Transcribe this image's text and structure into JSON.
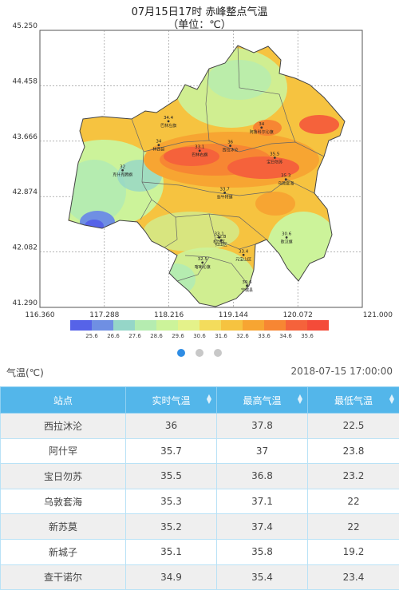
{
  "map": {
    "title": "07月15日17时   赤峰整点气温",
    "unit": "（单位：℃）",
    "lat_ticks": [
      "45.250",
      "44.458",
      "43.666",
      "42.874",
      "42.082",
      "41.290"
    ],
    "lon_ticks": [
      "116.360",
      "117.288",
      "118.216",
      "119.144",
      "120.072",
      "121.000"
    ],
    "legend_values": [
      "25.6",
      "26.6",
      "27.6",
      "28.6",
      "29.6",
      "30.6",
      "31.6",
      "32.6",
      "33.6",
      "34.6",
      "35.6"
    ],
    "legend_colors": [
      "#5663e8",
      "#6f8fe3",
      "#95d6c8",
      "#b5ecb0",
      "#ccf39a",
      "#e4f28a",
      "#f3dc5c",
      "#f6c340",
      "#f7a532",
      "#f78633",
      "#f5623b",
      "#f44b39"
    ],
    "stations": [
      {
        "name": "克什克腾旗",
        "value": "32",
        "lon": 117.55,
        "lat": 43.25
      },
      {
        "name": "林西县",
        "value": "34",
        "lon": 118.07,
        "lat": 43.61
      },
      {
        "name": "巴林左旗",
        "value": "34.4",
        "lon": 118.21,
        "lat": 43.95
      },
      {
        "name": "巴林右旗",
        "value": "33.1",
        "lon": 118.66,
        "lat": 43.53
      },
      {
        "name": "阿鲁科尔沁旗",
        "value": "34",
        "lon": 119.55,
        "lat": 43.86
      },
      {
        "name": "翁牛特旗",
        "value": "33.7",
        "lon": 119.02,
        "lat": 42.93
      },
      {
        "name": "松山区",
        "value": "33.1",
        "lon": 118.94,
        "lat": 42.29
      },
      {
        "name": "红山区",
        "value": "32.8",
        "lon": 118.97,
        "lat": 42.25
      },
      {
        "name": "元宝山区",
        "value": "33.4",
        "lon": 119.29,
        "lat": 42.04
      },
      {
        "name": "敖汉旗",
        "value": "30.6",
        "lon": 119.91,
        "lat": 42.29
      },
      {
        "name": "喀喇沁旗",
        "value": "32.5",
        "lon": 118.7,
        "lat": 41.93
      },
      {
        "name": "宁城县",
        "value": "30.6",
        "lon": 119.34,
        "lat": 41.6
      },
      {
        "name": "宝日勿苏",
        "value": "35.5",
        "lon": 119.74,
        "lat": 43.43
      },
      {
        "name": "乌敦套海",
        "value": "35.3",
        "lon": 119.9,
        "lat": 43.12
      },
      {
        "name": "西拉沐沦",
        "value": "36",
        "lon": 119.1,
        "lat": 43.6
      }
    ]
  },
  "pager": {
    "count": 3,
    "active": 0
  },
  "info": {
    "label": "气温(℃)",
    "time": "2018-07-15 17:00:00"
  },
  "table": {
    "headers": [
      "站点",
      "实时气温",
      "最高气温",
      "最低气温"
    ],
    "rows": [
      [
        "西拉沐沦",
        "36",
        "37.8",
        "22.5"
      ],
      [
        "阿什罕",
        "35.7",
        "37",
        "23.8"
      ],
      [
        "宝日勿苏",
        "35.5",
        "36.8",
        "23.2"
      ],
      [
        "乌敦套海",
        "35.3",
        "37.1",
        "22"
      ],
      [
        "新苏莫",
        "35.2",
        "37.4",
        "22"
      ],
      [
        "新城子",
        "35.1",
        "35.8",
        "19.2"
      ],
      [
        "查干诺尔",
        "34.9",
        "35.4",
        "23.4"
      ]
    ]
  }
}
